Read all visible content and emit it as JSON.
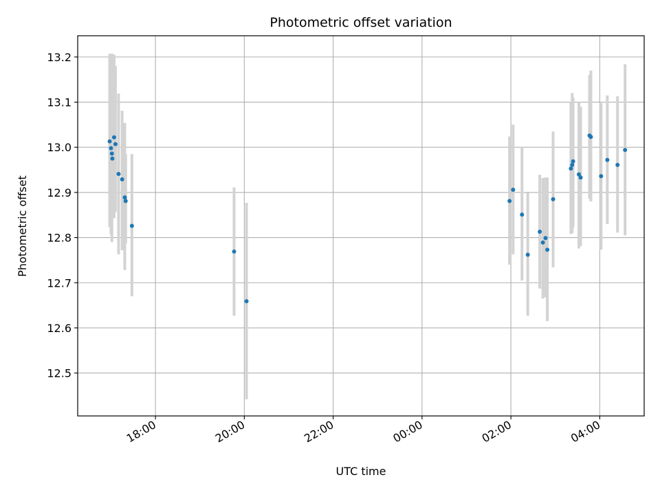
{
  "chart_data": {
    "type": "scatter",
    "title": "Photometric offset variation",
    "xlabel": "UTC time",
    "ylabel": "Photometric offset",
    "x_unit": "UTC hours (after 24:00 = next day)",
    "xlim": [
      16.25,
      29.0
    ],
    "ylim": [
      12.405,
      13.247
    ],
    "x_ticks": [
      18,
      20,
      22,
      24,
      26,
      28
    ],
    "x_tick_labels": [
      "18:00",
      "20:00",
      "22:00",
      "00:00",
      "02:00",
      "04:00"
    ],
    "y_ticks": [
      12.5,
      12.6,
      12.7,
      12.8,
      12.9,
      13.0,
      13.1,
      13.2
    ],
    "y_tick_labels": [
      "12.5",
      "12.6",
      "12.7",
      "12.8",
      "12.9",
      "13.0",
      "13.1",
      "13.2"
    ],
    "grid": true,
    "marker_color": "#1f77b4",
    "errorbar_color": "#d3d3d3",
    "points": [
      {
        "x": 16.97,
        "y": 13.013,
        "lo": 12.823,
        "hi": 13.207
      },
      {
        "x": 17.0,
        "y": 12.998,
        "lo": 12.807,
        "hi": 13.207
      },
      {
        "x": 17.02,
        "y": 12.986,
        "lo": 12.79,
        "hi": 13.207
      },
      {
        "x": 17.03,
        "y": 12.975,
        "lo": 12.847,
        "hi": 13.207
      },
      {
        "x": 17.07,
        "y": 13.022,
        "lo": 12.843,
        "hi": 13.205
      },
      {
        "x": 17.1,
        "y": 13.007,
        "lo": 12.857,
        "hi": 13.18
      },
      {
        "x": 17.17,
        "y": 12.941,
        "lo": 12.763,
        "hi": 13.119
      },
      {
        "x": 17.25,
        "y": 12.929,
        "lo": 12.772,
        "hi": 13.081
      },
      {
        "x": 17.31,
        "y": 12.889,
        "lo": 12.728,
        "hi": 13.054
      },
      {
        "x": 17.33,
        "y": 12.881,
        "lo": 12.787,
        "hi": 12.985
      },
      {
        "x": 17.47,
        "y": 12.826,
        "lo": 12.67,
        "hi": 12.985
      },
      {
        "x": 19.77,
        "y": 12.769,
        "lo": 12.627,
        "hi": 12.911
      },
      {
        "x": 20.05,
        "y": 12.659,
        "lo": 12.442,
        "hi": 12.877
      },
      {
        "x": 25.97,
        "y": 12.881,
        "lo": 12.74,
        "hi": 13.024
      },
      {
        "x": 26.05,
        "y": 12.906,
        "lo": 12.763,
        "hi": 13.05
      },
      {
        "x": 26.25,
        "y": 12.851,
        "lo": 12.705,
        "hi": 13.0
      },
      {
        "x": 26.38,
        "y": 12.762,
        "lo": 12.627,
        "hi": 12.899
      },
      {
        "x": 26.65,
        "y": 12.813,
        "lo": 12.687,
        "hi": 12.939
      },
      {
        "x": 26.72,
        "y": 12.789,
        "lo": 12.665,
        "hi": 12.932
      },
      {
        "x": 26.78,
        "y": 12.799,
        "lo": 12.668,
        "hi": 12.933
      },
      {
        "x": 26.82,
        "y": 12.773,
        "lo": 12.615,
        "hi": 12.933
      },
      {
        "x": 26.95,
        "y": 12.885,
        "lo": 12.734,
        "hi": 13.035
      },
      {
        "x": 27.35,
        "y": 12.953,
        "lo": 12.808,
        "hi": 13.1
      },
      {
        "x": 27.38,
        "y": 12.961,
        "lo": 12.81,
        "hi": 13.12
      },
      {
        "x": 27.4,
        "y": 12.969,
        "lo": 12.823,
        "hi": 13.11
      },
      {
        "x": 27.53,
        "y": 12.94,
        "lo": 12.776,
        "hi": 13.1
      },
      {
        "x": 27.57,
        "y": 12.933,
        "lo": 12.781,
        "hi": 13.09
      },
      {
        "x": 27.77,
        "y": 13.026,
        "lo": 12.886,
        "hi": 13.16
      },
      {
        "x": 27.8,
        "y": 13.023,
        "lo": 12.88,
        "hi": 13.17
      },
      {
        "x": 28.03,
        "y": 12.936,
        "lo": 12.773,
        "hi": 13.098
      },
      {
        "x": 28.17,
        "y": 12.972,
        "lo": 12.83,
        "hi": 13.115
      },
      {
        "x": 28.4,
        "y": 12.961,
        "lo": 12.811,
        "hi": 13.113
      },
      {
        "x": 28.57,
        "y": 12.994,
        "lo": 12.805,
        "hi": 13.184
      }
    ]
  }
}
